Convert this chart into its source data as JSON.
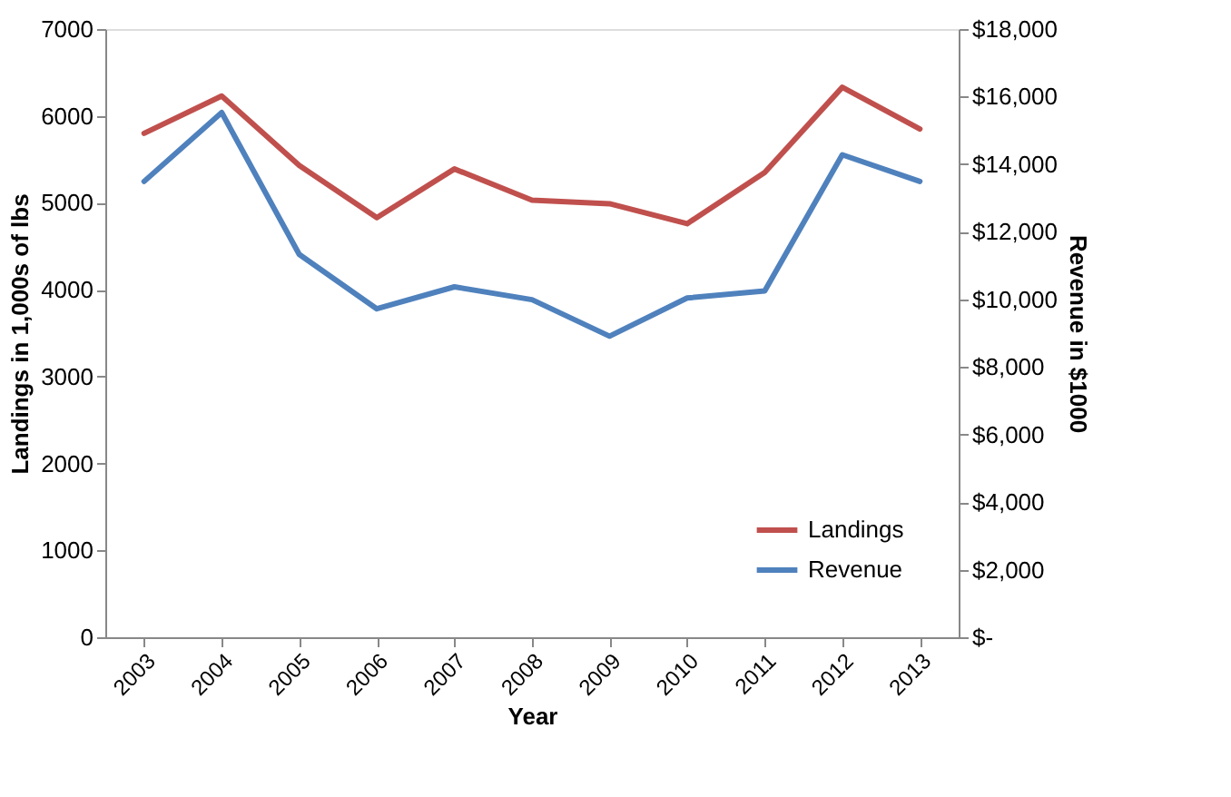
{
  "chart_data": {
    "type": "line",
    "xlabel": "Year",
    "ylabel": "Landings in 1,000s of lbs",
    "y2label": "Revenue in $1000",
    "categories": [
      "2003",
      "2004",
      "2005",
      "2006",
      "2007",
      "2008",
      "2009",
      "2010",
      "2011",
      "2012",
      "2013"
    ],
    "series": [
      {
        "name": "Landings",
        "color": "#c0504d",
        "axis": "y",
        "values": [
          5800,
          6230,
          5430,
          4830,
          5390,
          5030,
          4990,
          4760,
          5350,
          6330,
          5850
        ]
      },
      {
        "name": "Revenue",
        "color": "#4f81bd",
        "axis": "y2",
        "values": [
          13490,
          15530,
          11330,
          9720,
          10370,
          9990,
          8910,
          10040,
          10250,
          14280,
          13490
        ]
      }
    ],
    "ylim": [
      0,
      7000
    ],
    "yticks": [
      0,
      1000,
      2000,
      3000,
      4000,
      5000,
      6000,
      7000
    ],
    "y2lim": [
      0,
      18000
    ],
    "y2ticks": [
      {
        "value": 0,
        "label": "$-"
      },
      {
        "value": 2000,
        "label": "$2,000"
      },
      {
        "value": 4000,
        "label": "$4,000"
      },
      {
        "value": 6000,
        "label": "$6,000"
      },
      {
        "value": 8000,
        "label": "$8,000"
      },
      {
        "value": 10000,
        "label": "$10,000"
      },
      {
        "value": 12000,
        "label": "$12,000"
      },
      {
        "value": 14000,
        "label": "$14,000"
      },
      {
        "value": 16000,
        "label": "$16,000"
      },
      {
        "value": 18000,
        "label": "$18,000"
      }
    ],
    "grid": false,
    "legend": "bottom right",
    "marker": "none",
    "line_style": "solid"
  }
}
